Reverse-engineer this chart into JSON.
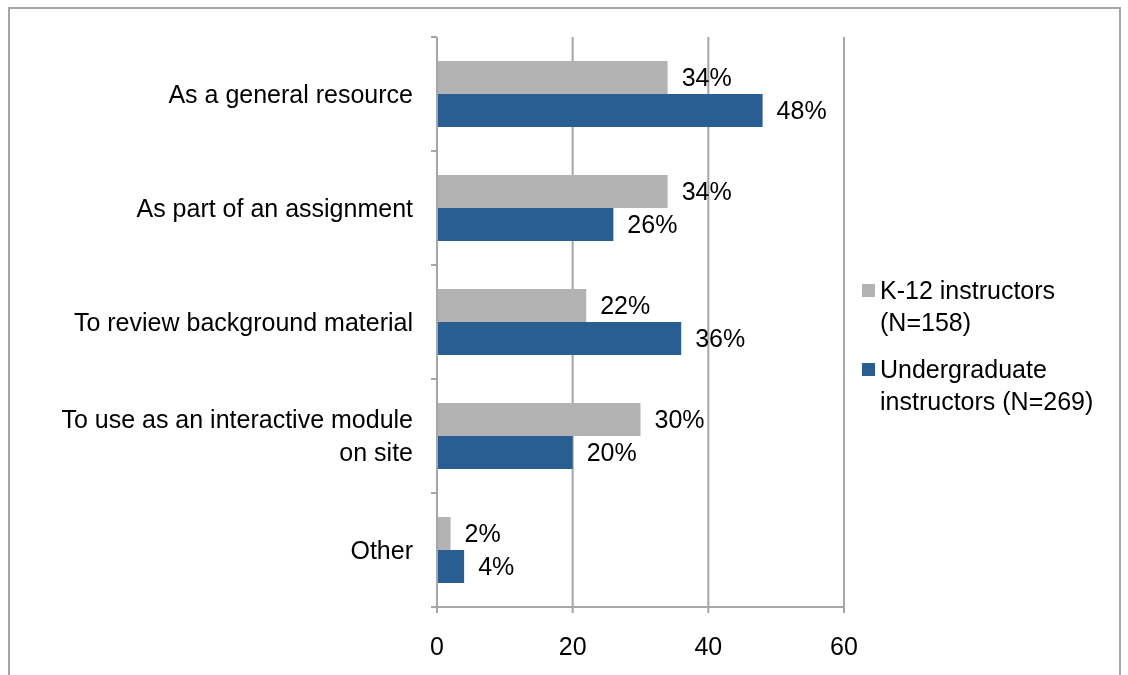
{
  "chart_data": {
    "type": "bar",
    "orientation": "horizontal",
    "categories": [
      "As a general resource",
      "As part of an assignment",
      "To review background material",
      "To use as an interactive module on site",
      "Other"
    ],
    "series": [
      {
        "name": "K-12 instructors (N=158)",
        "color": "#b3b3b3",
        "values": [
          34,
          34,
          22,
          30,
          2
        ],
        "value_labels": [
          "34%",
          "34%",
          "22%",
          "30%",
          "2%"
        ]
      },
      {
        "name": "Undergraduate instructors (N=269)",
        "color": "#285e91",
        "values": [
          48,
          26,
          36,
          20,
          4
        ],
        "value_labels": [
          "48%",
          "26%",
          "36%",
          "20%",
          "4%"
        ]
      }
    ],
    "xlim": [
      0,
      60
    ],
    "xticks": [
      0,
      20,
      40,
      60
    ],
    "grid": "x",
    "legend": "right"
  }
}
